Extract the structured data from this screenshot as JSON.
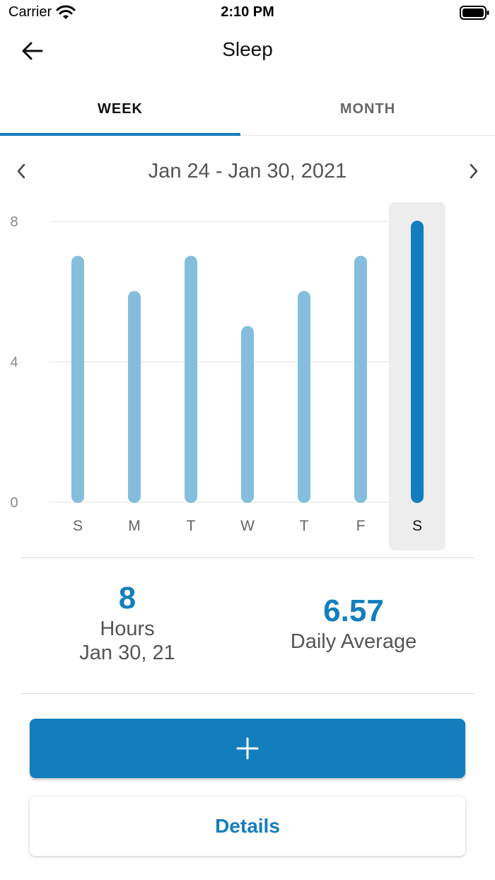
{
  "status_bar": {
    "carrier": "Carrier",
    "time": "2:10 PM"
  },
  "navbar": {
    "title": "Sleep"
  },
  "tabs": [
    {
      "label": "WEEK",
      "active": true
    },
    {
      "label": "MONTH",
      "active": false
    }
  ],
  "date_range": {
    "text": "Jan 24 - Jan 30, 2021"
  },
  "chart_data": {
    "type": "bar",
    "categories": [
      "S",
      "M",
      "T",
      "W",
      "T",
      "F",
      "S"
    ],
    "values": [
      7,
      6,
      7,
      5,
      6,
      7,
      8
    ],
    "ylim": [
      0,
      8
    ],
    "yticks": [
      "0",
      "4",
      "8"
    ],
    "selected_index": 6,
    "grid": true,
    "colors": {
      "bar": "#85bedd",
      "selected_bar": "#137ebd",
      "selected_bg": "#ededed",
      "axis_text": "#888888",
      "grid": "#e3e3e3"
    }
  },
  "summary": {
    "selected": {
      "value": "8",
      "unit": "Hours",
      "date": "Jan 30, 21"
    },
    "average": {
      "value": "6.57",
      "label": "Daily Average"
    }
  },
  "actions": {
    "add_icon": "plus-icon",
    "details_label": "Details"
  },
  "colors": {
    "accent": "#137ebd"
  }
}
